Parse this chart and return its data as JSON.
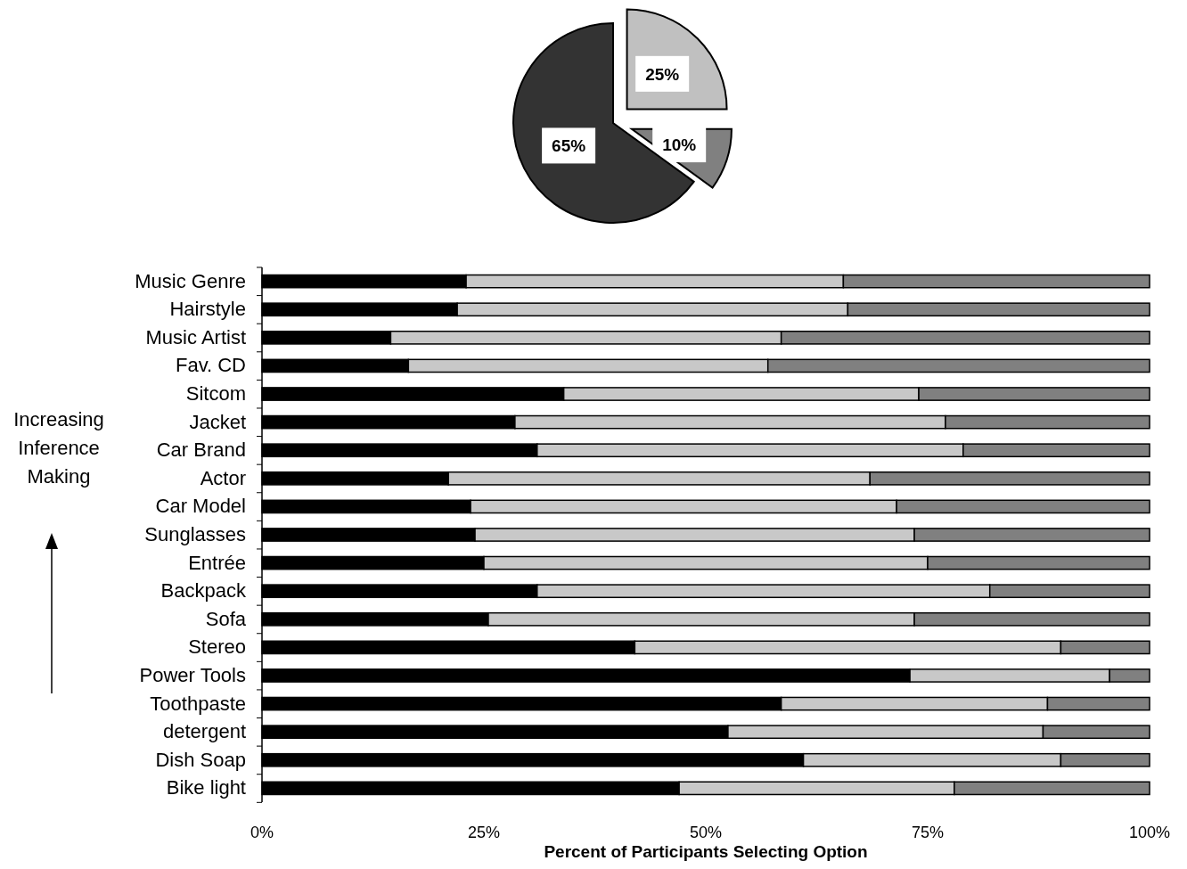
{
  "chart_data": [
    {
      "type": "pie",
      "categories": [
        null,
        null,
        null
      ],
      "values": [
        25,
        10,
        65
      ],
      "colors": [
        "#c0c0c0",
        "#808080",
        "#333333"
      ],
      "value_labels": [
        "25%",
        "10%",
        "65%"
      ]
    },
    {
      "type": "bar",
      "orientation": "horizontal",
      "stacked": true,
      "xlabel": "Percent of Participants Selecting Option",
      "categories": [
        "Music Genre",
        "Hairstyle",
        "Music Artist",
        "Fav. CD",
        "Sitcom",
        "Jacket",
        "Car Brand",
        "Actor",
        "Car Model",
        "Sunglasses",
        "Entrée",
        "Backpack",
        "Sofa",
        "Stereo",
        "Power Tools",
        "Toothpaste",
        "detergent",
        "Dish Soap",
        "Bike light"
      ],
      "series": [
        {
          "color": "#000000",
          "values": [
            23,
            22,
            14.5,
            16.5,
            34,
            28.5,
            31,
            21,
            23.5,
            24,
            25,
            31,
            25.5,
            42,
            73,
            58.5,
            52.5,
            61,
            47
          ]
        },
        {
          "color": "#c8c8c8",
          "values": [
            42.5,
            44,
            44,
            40.5,
            40,
            48.5,
            48,
            47.5,
            48,
            49.5,
            50,
            51,
            48,
            48,
            22.5,
            30,
            35.5,
            29,
            31
          ]
        },
        {
          "color": "#808080",
          "values": [
            34.5,
            34,
            41.5,
            43,
            26,
            23,
            21,
            31.5,
            28.5,
            26.5,
            25,
            18,
            26.5,
            10,
            4.5,
            11.5,
            12,
            10,
            22
          ]
        }
      ],
      "xlim": [
        0,
        100
      ],
      "xticks": [
        {
          "value": 0,
          "label": "0%"
        },
        {
          "value": 25,
          "label": "25%"
        },
        {
          "value": 50,
          "label": "50%"
        },
        {
          "value": 75,
          "label": "75%"
        },
        {
          "value": 100,
          "label": "100%"
        }
      ],
      "annotations": [
        "Increasing Inference Making"
      ]
    }
  ]
}
